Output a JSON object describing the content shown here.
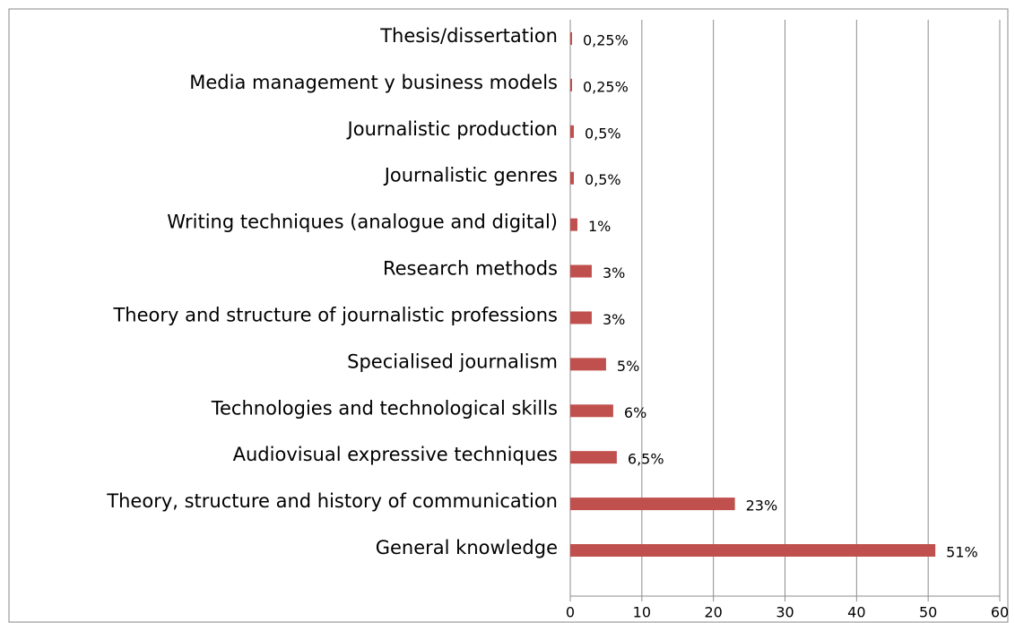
{
  "chart_data": {
    "type": "barh",
    "categories": [
      "Thesis/dissertation",
      "Media management y business models",
      "Journalistic production",
      "Journalistic genres",
      "Writing techniques (analogue and digital)",
      "Research methods",
      "Theory and structure of journalistic professions",
      "Specialised journalism",
      "Technologies and technological skills",
      "Audiovisual expressive techniques",
      "Theory, structure and history of communication",
      "General knowledge"
    ],
    "values": [
      0.25,
      0.25,
      0.5,
      0.5,
      1,
      3,
      3,
      5,
      6,
      6.5,
      23,
      51
    ],
    "value_labels": [
      "0,25%",
      "0,25%",
      "0,5%",
      "0,5%",
      "1%",
      "3%",
      "3%",
      "5%",
      "6%",
      "6,5%",
      "23%",
      "51%"
    ],
    "color": "#c0504d",
    "xlim": [
      0,
      60
    ],
    "xticks": [
      0,
      10,
      20,
      30,
      40,
      50,
      60
    ],
    "grid": true
  }
}
